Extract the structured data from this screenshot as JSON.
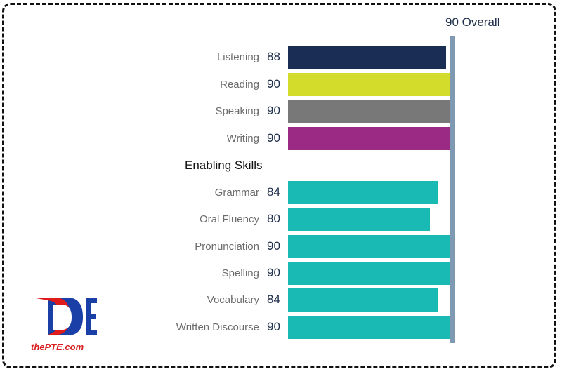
{
  "overall": {
    "label": "90 Overall",
    "value": 90,
    "line_color": "#7f99b3"
  },
  "enabling_heading": "Enabling Skills",
  "chart_data": {
    "type": "bar",
    "orientation": "horizontal",
    "xlim": [
      10,
      90
    ],
    "categories": [
      "Listening",
      "Reading",
      "Speaking",
      "Writing",
      "Grammar",
      "Oral Fluency",
      "Pronunciation",
      "Spelling",
      "Vocabulary",
      "Written Discourse"
    ],
    "values": [
      88,
      90,
      90,
      90,
      84,
      80,
      90,
      90,
      84,
      90
    ],
    "colors": [
      "#1a2e55",
      "#d3dc2a",
      "#787878",
      "#9b2a84",
      "#19bab3",
      "#19bab3",
      "#19bab3",
      "#19bab3",
      "#19bab3",
      "#19bab3"
    ],
    "groups": [
      {
        "name": "",
        "members": [
          "Listening",
          "Reading",
          "Speaking",
          "Writing"
        ]
      },
      {
        "name": "Enabling Skills",
        "members": [
          "Grammar",
          "Oral Fluency",
          "Pronunciation",
          "Spelling",
          "Vocabulary",
          "Written Discourse"
        ]
      }
    ],
    "reference_line": {
      "value": 90,
      "label": "90 Overall"
    }
  },
  "logo": {
    "text": "thePTE.com",
    "text_color": "#d81e1e",
    "accent_red": "#e01b1b",
    "accent_blue": "#1a3fa6"
  }
}
